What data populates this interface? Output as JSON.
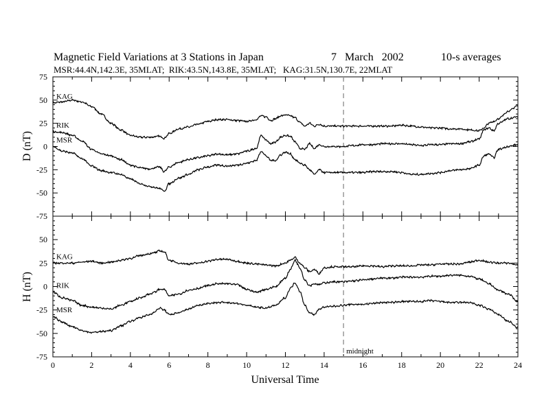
{
  "header": {
    "title": "Magnetic Field Variations at 3 Stations in Japan",
    "date": "7   March   2002",
    "averaging": "10-s averages",
    "subtitle": "MSR:44.4N,142.3E, 35MLAT;  RIK:43.5N,143.8E, 35MLAT;   KAG:31.5N,130.7E, 22MLAT"
  },
  "colors": {
    "trace": "#000000",
    "marker": "#999999",
    "axis": "#000000"
  },
  "chart_data": [
    {
      "type": "line",
      "panel": "top",
      "ylabel": "D (nT)",
      "xlim": [
        0,
        24
      ],
      "ylim": [
        -75,
        75
      ],
      "yticks": [
        75,
        50,
        25,
        0,
        -25,
        -50,
        -75
      ],
      "xtick_labels_shown": false,
      "x": [
        0,
        0.5,
        1,
        1.5,
        2,
        2.5,
        3,
        3.5,
        4,
        4.5,
        5,
        5.5,
        5.75,
        6,
        6.5,
        7,
        7.5,
        8,
        8.5,
        9,
        9.5,
        10,
        10.5,
        10.75,
        11,
        11.25,
        11.5,
        11.75,
        12,
        12.25,
        12.5,
        12.75,
        13,
        13.25,
        13.5,
        13.75,
        14,
        14.5,
        15,
        15.5,
        16,
        16.5,
        17,
        17.5,
        18,
        18.5,
        19,
        19.5,
        20,
        20.5,
        21,
        21.5,
        22,
        22.25,
        22.5,
        22.75,
        23,
        23.5,
        24
      ],
      "series": [
        {
          "name": "KAG",
          "values": [
            47,
            48,
            50,
            48,
            43,
            35,
            25,
            18,
            12,
            10,
            10,
            11,
            9,
            14,
            19,
            21,
            24,
            27,
            29,
            29,
            28,
            27,
            29,
            33,
            32,
            28,
            30,
            33,
            34,
            33,
            31,
            26,
            22,
            25,
            22,
            24,
            22,
            22,
            22,
            22,
            22,
            22,
            22,
            22,
            23,
            22,
            21,
            20,
            20,
            19,
            19,
            18,
            17,
            20,
            25,
            27,
            30,
            38,
            44
          ]
        },
        {
          "name": "RIK",
          "values": [
            16,
            15,
            12,
            6,
            -3,
            -8,
            -10,
            -14,
            -20,
            -23,
            -24,
            -22,
            -27,
            -22,
            -17,
            -14,
            -12,
            -10,
            -8,
            -9,
            -8,
            -5,
            -2,
            12,
            7,
            3,
            5,
            10,
            12,
            11,
            5,
            -2,
            -3,
            3,
            -2,
            2,
            0,
            0,
            0,
            1,
            2,
            2,
            3,
            3,
            3,
            2,
            1,
            2,
            2,
            3,
            3,
            5,
            8,
            18,
            20,
            17,
            25,
            30,
            32
          ]
        },
        {
          "name": "MSR",
          "values": [
            0,
            -5,
            -7,
            -13,
            -21,
            -26,
            -28,
            -30,
            -35,
            -40,
            -43,
            -45,
            -48,
            -40,
            -34,
            -30,
            -25,
            -22,
            -20,
            -21,
            -20,
            -18,
            -15,
            -5,
            -10,
            -15,
            -15,
            -9,
            -6,
            -8,
            -14,
            -18,
            -20,
            -25,
            -30,
            -25,
            -28,
            -28,
            -28,
            -28,
            -28,
            -27,
            -27,
            -27,
            -28,
            -30,
            -30,
            -29,
            -28,
            -26,
            -25,
            -24,
            -20,
            -10,
            -8,
            -12,
            -3,
            0,
            2
          ]
        }
      ]
    },
    {
      "type": "line",
      "panel": "bottom",
      "ylabel": "H (nT)",
      "xlabel": "Universal Time",
      "xlim": [
        0,
        24
      ],
      "ylim": [
        -75,
        75
      ],
      "yticks": [
        50,
        25,
        0,
        -25,
        -50,
        -75
      ],
      "xticks": [
        0,
        2,
        4,
        6,
        8,
        10,
        12,
        14,
        16,
        18,
        20,
        22,
        24
      ],
      "annotation": {
        "label": "midnight",
        "x": 15
      },
      "x": [
        0,
        0.5,
        1,
        1.5,
        2,
        2.5,
        3,
        3.5,
        4,
        4.5,
        5,
        5.25,
        5.5,
        5.75,
        6,
        6.5,
        7,
        7.5,
        8,
        8.5,
        9,
        9.5,
        10,
        10.5,
        11,
        11.5,
        12,
        12.25,
        12.5,
        12.75,
        13,
        13.25,
        13.5,
        13.75,
        14,
        14.5,
        15,
        15.5,
        16,
        16.5,
        17,
        17.5,
        18,
        18.5,
        19,
        19.5,
        20,
        20.5,
        21,
        21.5,
        22,
        22.5,
        23,
        23.5,
        24
      ],
      "series": [
        {
          "name": "KAG",
          "values": [
            25,
            25,
            25,
            26,
            27,
            25,
            26,
            28,
            30,
            33,
            35,
            36,
            38,
            37,
            28,
            25,
            24,
            25,
            27,
            29,
            29,
            27,
            25,
            24,
            23,
            22,
            25,
            28,
            31,
            25,
            20,
            16,
            18,
            14,
            20,
            21,
            21,
            21,
            22,
            22,
            21,
            22,
            22,
            22,
            23,
            23,
            24,
            24,
            24,
            26,
            28,
            26,
            25,
            25,
            23
          ]
        },
        {
          "name": "RIK",
          "values": [
            -6,
            -12,
            -15,
            -20,
            -22,
            -23,
            -24,
            -20,
            -16,
            -12,
            -8,
            -6,
            -3,
            -3,
            -10,
            -8,
            -4,
            -2,
            1,
            3,
            3,
            2,
            -3,
            -6,
            -3,
            0,
            9,
            18,
            28,
            20,
            7,
            1,
            3,
            2,
            4,
            5,
            5,
            6,
            7,
            8,
            9,
            9,
            10,
            10,
            10,
            11,
            11,
            12,
            12,
            11,
            8,
            3,
            -4,
            -8,
            -16
          ]
        },
        {
          "name": "MSR",
          "values": [
            -32,
            -38,
            -43,
            -47,
            -49,
            -48,
            -47,
            -42,
            -37,
            -33,
            -30,
            -27,
            -23,
            -25,
            -30,
            -28,
            -24,
            -20,
            -18,
            -17,
            -17,
            -18,
            -20,
            -22,
            -23,
            -20,
            -12,
            -2,
            4,
            -5,
            -20,
            -28,
            -30,
            -24,
            -22,
            -21,
            -20,
            -19,
            -19,
            -18,
            -17,
            -17,
            -16,
            -16,
            -16,
            -15,
            -16,
            -17,
            -17,
            -17,
            -20,
            -24,
            -30,
            -37,
            -44
          ]
        }
      ]
    }
  ]
}
